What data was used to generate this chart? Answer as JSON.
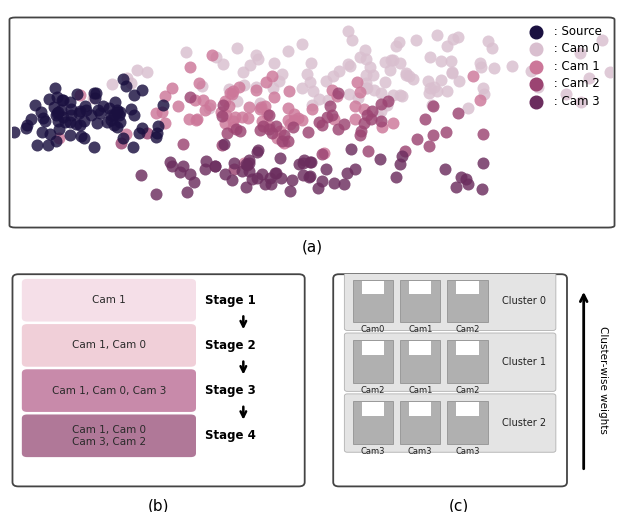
{
  "title_a": "(a)",
  "title_b": "(b)",
  "title_c": "(c)",
  "legend_labels": [
    "Source",
    "Cam 0",
    "Cam 1",
    "Cam 2",
    "Cam 3"
  ],
  "legend_colors": [
    "#1a1040",
    "#d9bfcf",
    "#cc7799",
    "#9b4472",
    "#6b2d5e"
  ],
  "scatter_seed": 123,
  "scatter_size": 75,
  "marker_alpha": 0.82,
  "box_colors_b": [
    "#f5dfe8",
    "#f0cfd8",
    "#c88aaa",
    "#b07898"
  ],
  "stage_labels": [
    "Stage 1",
    "Stage 2",
    "Stage 3",
    "Stage 4"
  ],
  "cam_labels_b": [
    "Cam 1",
    "Cam 1, Cam 0",
    "Cam 1, Cam 0, Cam 3",
    "Cam 1, Cam 0\nCam 3, Cam 2"
  ],
  "cluster_labels": [
    "Cluster 0",
    "Cluster 1",
    "Cluster 2"
  ],
  "cluster_cam_labels": [
    [
      "Cam0",
      "Cam1",
      "Cam2"
    ],
    [
      "Cam2",
      "Cam1",
      "Cam2"
    ],
    [
      "Cam3",
      "Cam3",
      "Cam3"
    ]
  ],
  "cluster_bg_color": "#e4e4e4",
  "outline_color": "#444444"
}
